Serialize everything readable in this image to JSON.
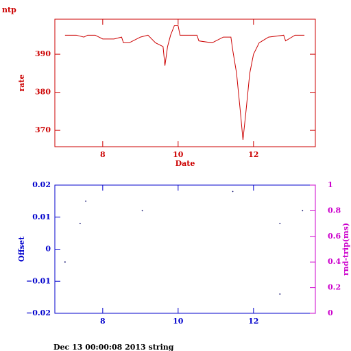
{
  "chart_data": [
    {
      "type": "line",
      "title": "ntp",
      "x_label": "Date",
      "y_label": "rate",
      "color": "#cc0000",
      "x": [
        7.0,
        7.3,
        7.5,
        7.6,
        7.8,
        8.0,
        8.3,
        8.5,
        8.55,
        8.7,
        8.8,
        9.0,
        9.2,
        9.4,
        9.5,
        9.6,
        9.65,
        9.72,
        9.8,
        9.9,
        10.0,
        10.05,
        10.3,
        10.5,
        10.55,
        10.9,
        11.0,
        11.2,
        11.4,
        11.45,
        11.55,
        11.65,
        11.72,
        11.8,
        11.9,
        12.0,
        12.15,
        12.4,
        12.8,
        12.85,
        13.1,
        13.35
      ],
      "series": [
        {
          "name": "rate",
          "color": "#cc0000",
          "values": [
            395,
            395,
            394.5,
            395,
            395,
            394,
            394,
            394.5,
            393,
            393,
            393.5,
            394.5,
            395,
            393,
            392.5,
            392,
            387,
            392,
            395,
            397.5,
            397.5,
            395,
            395,
            395,
            393.5,
            393,
            393.5,
            394.5,
            394.5,
            391,
            385,
            375,
            367.5,
            375,
            385,
            390,
            393,
            394.5,
            395,
            393.5,
            395,
            395
          ]
        }
      ],
      "xlim": [
        6.73,
        13.64
      ],
      "xticks": [
        8,
        10,
        12
      ],
      "ylim": [
        365.7,
        399.2
      ],
      "yticks": [
        370,
        380,
        390
      ]
    },
    {
      "type": "scatter",
      "y_label": "Offset",
      "y2_label": "rnd-trip(ms)",
      "color": "#0000cc",
      "y2_color": "#cc00cc",
      "x": [
        7.0,
        7.4,
        7.55,
        9.05,
        11.45,
        12.7,
        12.7,
        13.3
      ],
      "series": [
        {
          "name": "Offset",
          "color": "#000066",
          "values": [
            -0.004,
            0.008,
            0.015,
            0.012,
            0.018,
            0.008,
            -0.014,
            0.012
          ]
        }
      ],
      "xlim": [
        6.73,
        13.64
      ],
      "xticks": [
        8,
        10,
        12
      ],
      "ylim": [
        -0.02,
        0.02
      ],
      "yticks": [
        {
          "value": -0.02,
          "label": "−0.02"
        },
        {
          "value": -0.01,
          "label": "−0.01"
        },
        0,
        0.01,
        0.02
      ],
      "y2lim": [
        0,
        1
      ],
      "y2ticks": [
        0,
        0.2,
        0.4,
        0.6,
        0.8,
        1
      ]
    }
  ],
  "footer": "Dec 13 00:00:08 2013 string"
}
